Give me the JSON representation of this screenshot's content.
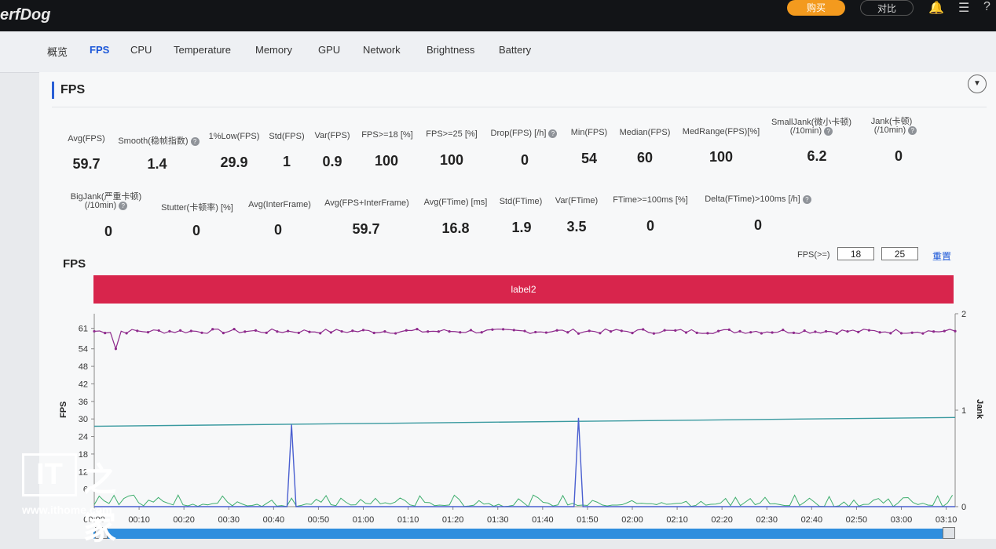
{
  "app": {
    "logo": "erfDog",
    "buy_label": "购买",
    "compare_label": "对比",
    "icons": [
      "bell-icon",
      "menu-icon",
      "help-icon"
    ]
  },
  "tabs": [
    "概览",
    "FPS",
    "CPU",
    "Temperature",
    "Memory",
    "GPU",
    "Network",
    "Brightness",
    "Battery"
  ],
  "active_tab": "FPS",
  "section": {
    "title": "FPS"
  },
  "metrics_row1": [
    {
      "label": "Avg(FPS)",
      "value": "59.7"
    },
    {
      "label": "Smooth(稳帧指数)",
      "value": "1.4",
      "help": true
    },
    {
      "label": "1%Low(FPS)",
      "value": "29.9"
    },
    {
      "label": "Std(FPS)",
      "value": "1"
    },
    {
      "label": "Var(FPS)",
      "value": "0.9"
    },
    {
      "label": "FPS>=18 [%]",
      "value": "100"
    },
    {
      "label": "FPS>=25 [%]",
      "value": "100"
    },
    {
      "label": "Drop(FPS) [/h]",
      "value": "0",
      "help": true
    },
    {
      "label": "Min(FPS)",
      "value": "54"
    },
    {
      "label": "Median(FPS)",
      "value": "60"
    },
    {
      "label": "MedRange(FPS)[%]",
      "value": "100"
    },
    {
      "label": "SmallJank(微小卡顿)",
      "label2": "(/10min)",
      "value": "6.2",
      "help": true
    },
    {
      "label": "Jank(卡顿)",
      "label2": "(/10min)",
      "value": "0",
      "help": true
    }
  ],
  "metrics_row2": [
    {
      "label": "BigJank(严重卡顿)",
      "label2": "(/10min)",
      "value": "0",
      "help": true
    },
    {
      "label": "Stutter(卡顿率) [%]",
      "value": "0"
    },
    {
      "label": "Avg(InterFrame)",
      "value": "0"
    },
    {
      "label": "Avg(FPS+InterFrame)",
      "value": "59.7"
    },
    {
      "label": "Avg(FTime) [ms]",
      "value": "16.8"
    },
    {
      "label": "Std(FTime)",
      "value": "1.9"
    },
    {
      "label": "Var(FTime)",
      "value": "3.5"
    },
    {
      "label": "FTime>=100ms [%]",
      "value": "0"
    },
    {
      "label": "Delta(FTime)>100ms [/h]",
      "value": "0",
      "help": true
    }
  ],
  "chart_controls": {
    "title": "FPS",
    "threshold_label": "FPS(>=)",
    "threshold_1": "18",
    "threshold_2": "25",
    "reset_label": "重置",
    "label_bar": "label2"
  },
  "watermark": {
    "logo_text": "IT",
    "url": "www.ithome.com"
  },
  "chart_data": {
    "type": "line",
    "title": "FPS",
    "ylabel": "FPS",
    "y2label": "Jank",
    "yticks": [
      61,
      54,
      48,
      42,
      36,
      30,
      24,
      18,
      12,
      6
    ],
    "ylim": [
      0,
      66
    ],
    "y2ticks": [
      0,
      1,
      2
    ],
    "y2lim": [
      0,
      2
    ],
    "xticks": [
      "00:00",
      "00:10",
      "00:20",
      "00:30",
      "00:40",
      "00:50",
      "01:00",
      "01:10",
      "01:20",
      "01:30",
      "01:40",
      "01:50",
      "02:00",
      "02:10",
      "02:20",
      "02:30",
      "02:40",
      "02:50",
      "03:00",
      "03:10"
    ],
    "xlim_seconds": [
      0,
      192
    ],
    "series": [
      {
        "name": "FPS",
        "color": "#8e2a8c",
        "style": "dotted-line",
        "mean": 60,
        "min": 54,
        "max": 61
      },
      {
        "name": "SmallJank",
        "color": "#4a5fd0",
        "points": [
          {
            "x": "00:00",
            "y": 0
          },
          {
            "x": "00:43",
            "y": 0
          },
          {
            "x": "00:44",
            "y": 0.85
          },
          {
            "x": "00:45",
            "y": 0
          },
          {
            "x": "01:47",
            "y": 0
          },
          {
            "x": "01:48",
            "y": 0.92
          },
          {
            "x": "01:49",
            "y": 0
          },
          {
            "x": "03:12",
            "y": 0
          }
        ]
      },
      {
        "name": "Avg",
        "color": "#3a9aa0",
        "points": [
          {
            "x": "00:00",
            "y": 27.5
          },
          {
            "x": "03:12",
            "y": 30.5
          }
        ]
      },
      {
        "name": "InterFrame",
        "color": "#3fae6e",
        "style": "noise-low",
        "max": 4
      }
    ]
  }
}
